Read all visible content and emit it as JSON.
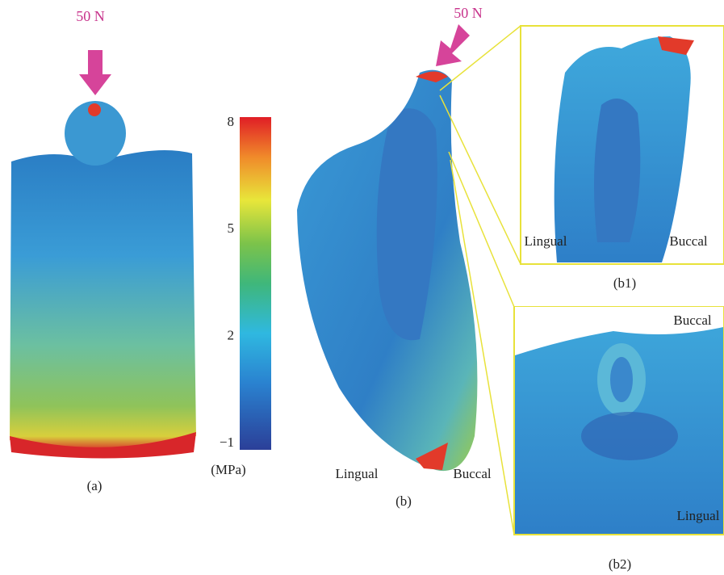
{
  "panels": {
    "a": {
      "load": "50 N",
      "label": "(a)"
    },
    "b": {
      "load": "50 N",
      "label": "(b)",
      "lingual": "Lingual",
      "buccal": "Buccal"
    },
    "b1": {
      "label": "(b1)",
      "lingual": "Lingual",
      "buccal": "Buccal"
    },
    "b2": {
      "label": "(b2)",
      "buccal": "Buccal",
      "lingual": "Lingual"
    }
  },
  "colorbar": {
    "unit": "(MPa)",
    "range": [
      -1,
      8
    ],
    "ticks": [
      8,
      5,
      2,
      {
        "value": -1,
        "label": "−1"
      }
    ]
  }
}
